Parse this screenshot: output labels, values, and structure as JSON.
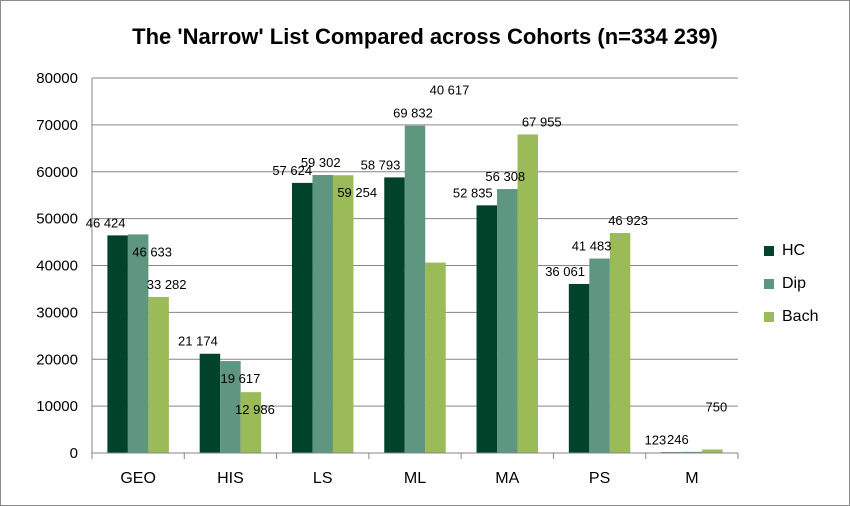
{
  "chart_data": {
    "type": "bar",
    "title": "The 'Narrow' List Compared across Cohorts (n=334 239)",
    "xlabel": "",
    "ylabel": "",
    "ylim": [
      0,
      80000
    ],
    "yticks": [
      0,
      10000,
      20000,
      30000,
      40000,
      50000,
      60000,
      70000,
      80000
    ],
    "ytick_labels": [
      "0",
      "10000",
      "20000",
      "30000",
      "40000",
      "50000",
      "60000",
      "70000",
      "80000"
    ],
    "grid": true,
    "legend_position": "right",
    "categories": [
      "GEO",
      "HIS",
      "LS",
      "ML",
      "MA",
      "PS",
      "M"
    ],
    "series": [
      {
        "name": "HC",
        "color": "#00432a",
        "values": [
          46424,
          21174,
          57624,
          58793,
          52835,
          36061,
          123
        ],
        "labels": [
          "46 424",
          "21 174",
          "57 624",
          "58 793",
          "52 835",
          "36 061",
          "123"
        ]
      },
      {
        "name": "Dip",
        "color": "#5f9680",
        "values": [
          46633,
          19617,
          59302,
          69832,
          56308,
          41483,
          246
        ],
        "labels": [
          "46 633",
          "19 617",
          "59 302",
          "69 832",
          "56 308",
          "41 483",
          "246"
        ]
      },
      {
        "name": "Bach",
        "color": "#9bbb59",
        "values": [
          33282,
          12986,
          59254,
          40617,
          67955,
          46923,
          750
        ],
        "labels": [
          "33 282",
          "12 986",
          "59 254",
          "40 617",
          "67 955",
          "46 923",
          "750"
        ]
      }
    ]
  }
}
